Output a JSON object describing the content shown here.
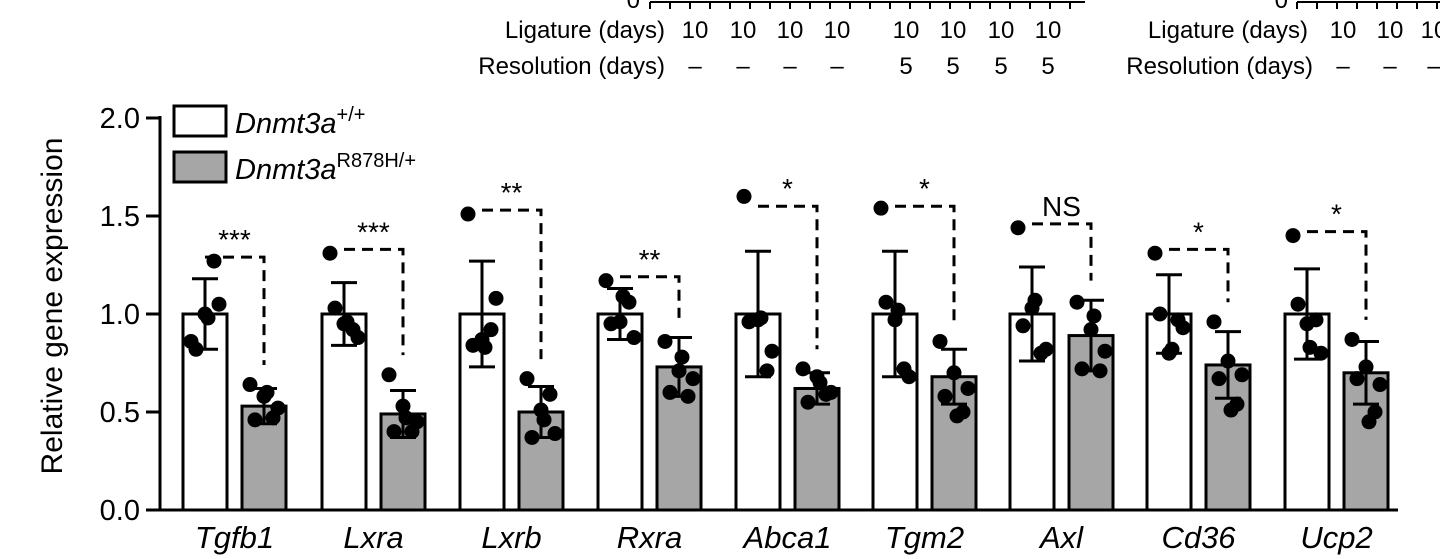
{
  "top_panels": [
    {
      "ligature_label": "Ligature (days)",
      "resolution_label": "Resolution (days)",
      "ligature_values": [
        "10",
        "10",
        "10",
        "10",
        "10",
        "10",
        "10",
        "10"
      ],
      "resolution_values": [
        "–",
        "–",
        "–",
        "–",
        "5",
        "5",
        "5",
        "5"
      ]
    },
    {
      "ligature_label": "Ligature (days)",
      "resolution_label": "Resolution (days)",
      "ligature_values": [
        "10",
        "10",
        "10"
      ],
      "resolution_values": [
        "–",
        "–",
        "–"
      ]
    }
  ],
  "colors": {
    "wildtype_fill": "#ffffff",
    "mutant_fill": "#a6a6a6",
    "stroke": "#000000"
  },
  "chart_data": {
    "type": "bar",
    "ylabel": "Relative gene expression",
    "ylim": [
      0,
      2.0
    ],
    "yticks": [
      "0.0",
      "0.5",
      "1.0",
      "1.5",
      "2.0"
    ],
    "legend_placement": "top-left",
    "legend": [
      {
        "base": "Dnmt3a",
        "sup": "+/+"
      },
      {
        "base": "Dnmt3a",
        "sup": "R878H/+"
      }
    ],
    "categories": [
      "Tgfb1",
      "Lxra",
      "Lxrb",
      "Rxra",
      "Abca1",
      "Tgm2",
      "Axl",
      "Cd36",
      "Ucp2"
    ],
    "series": [
      {
        "values": [
          1.0,
          1.0,
          1.0,
          1.0,
          1.0,
          1.0,
          1.0,
          1.0,
          1.0
        ],
        "sd": [
          0.18,
          0.16,
          0.27,
          0.13,
          0.32,
          0.32,
          0.24,
          0.2,
          0.23
        ]
      },
      {
        "values": [
          0.53,
          0.49,
          0.5,
          0.73,
          0.62,
          0.68,
          0.89,
          0.74,
          0.7
        ],
        "sd": [
          0.09,
          0.12,
          0.13,
          0.15,
          0.08,
          0.14,
          0.18,
          0.17,
          0.16
        ]
      }
    ],
    "points": [
      [
        [
          0.86,
          1.0,
          1.05,
          0.82,
          1.27,
          0.98
        ],
        [
          0.64,
          0.58,
          0.52,
          0.46,
          0.47,
          0.6
        ]
      ],
      [
        [
          1.31,
          0.95,
          0.88,
          1.03,
          0.92,
          0.96
        ],
        [
          0.69,
          0.53,
          0.45,
          0.4,
          0.4,
          0.47
        ]
      ],
      [
        [
          1.51,
          0.87,
          1.08,
          0.84,
          0.92,
          0.83
        ],
        [
          0.67,
          0.51,
          0.39,
          0.37,
          0.59,
          0.46
        ]
      ],
      [
        [
          1.17,
          0.96,
          0.88,
          0.95,
          1.06,
          1.09
        ],
        [
          0.86,
          0.71,
          0.67,
          0.6,
          0.58,
          0.78
        ]
      ],
      [
        [
          1.6,
          0.97,
          0.81,
          0.96,
          0.71,
          0.98
        ],
        [
          0.72,
          0.68,
          0.6,
          0.55,
          0.59,
          0.65
        ]
      ],
      [
        [
          1.54,
          0.97,
          0.68,
          1.06,
          0.72,
          1.02
        ],
        [
          0.86,
          0.7,
          0.62,
          0.58,
          0.5,
          0.48
        ]
      ],
      [
        [
          1.44,
          1.03,
          0.82,
          0.94,
          0.8,
          1.07
        ],
        [
          1.06,
          0.92,
          0.81,
          0.72,
          0.71,
          0.99
        ]
      ],
      [
        [
          1.31,
          0.8,
          0.93,
          1.0,
          0.97,
          0.82
        ],
        [
          0.96,
          0.76,
          0.69,
          0.67,
          0.54,
          0.51
        ]
      ],
      [
        [
          1.4,
          0.95,
          0.8,
          1.05,
          0.97,
          0.83
        ],
        [
          0.87,
          0.73,
          0.64,
          0.67,
          0.5,
          0.45
        ]
      ]
    ],
    "significance": [
      "***",
      "***",
      "**",
      "**",
      "*",
      "*",
      "NS",
      "*",
      "*"
    ]
  }
}
